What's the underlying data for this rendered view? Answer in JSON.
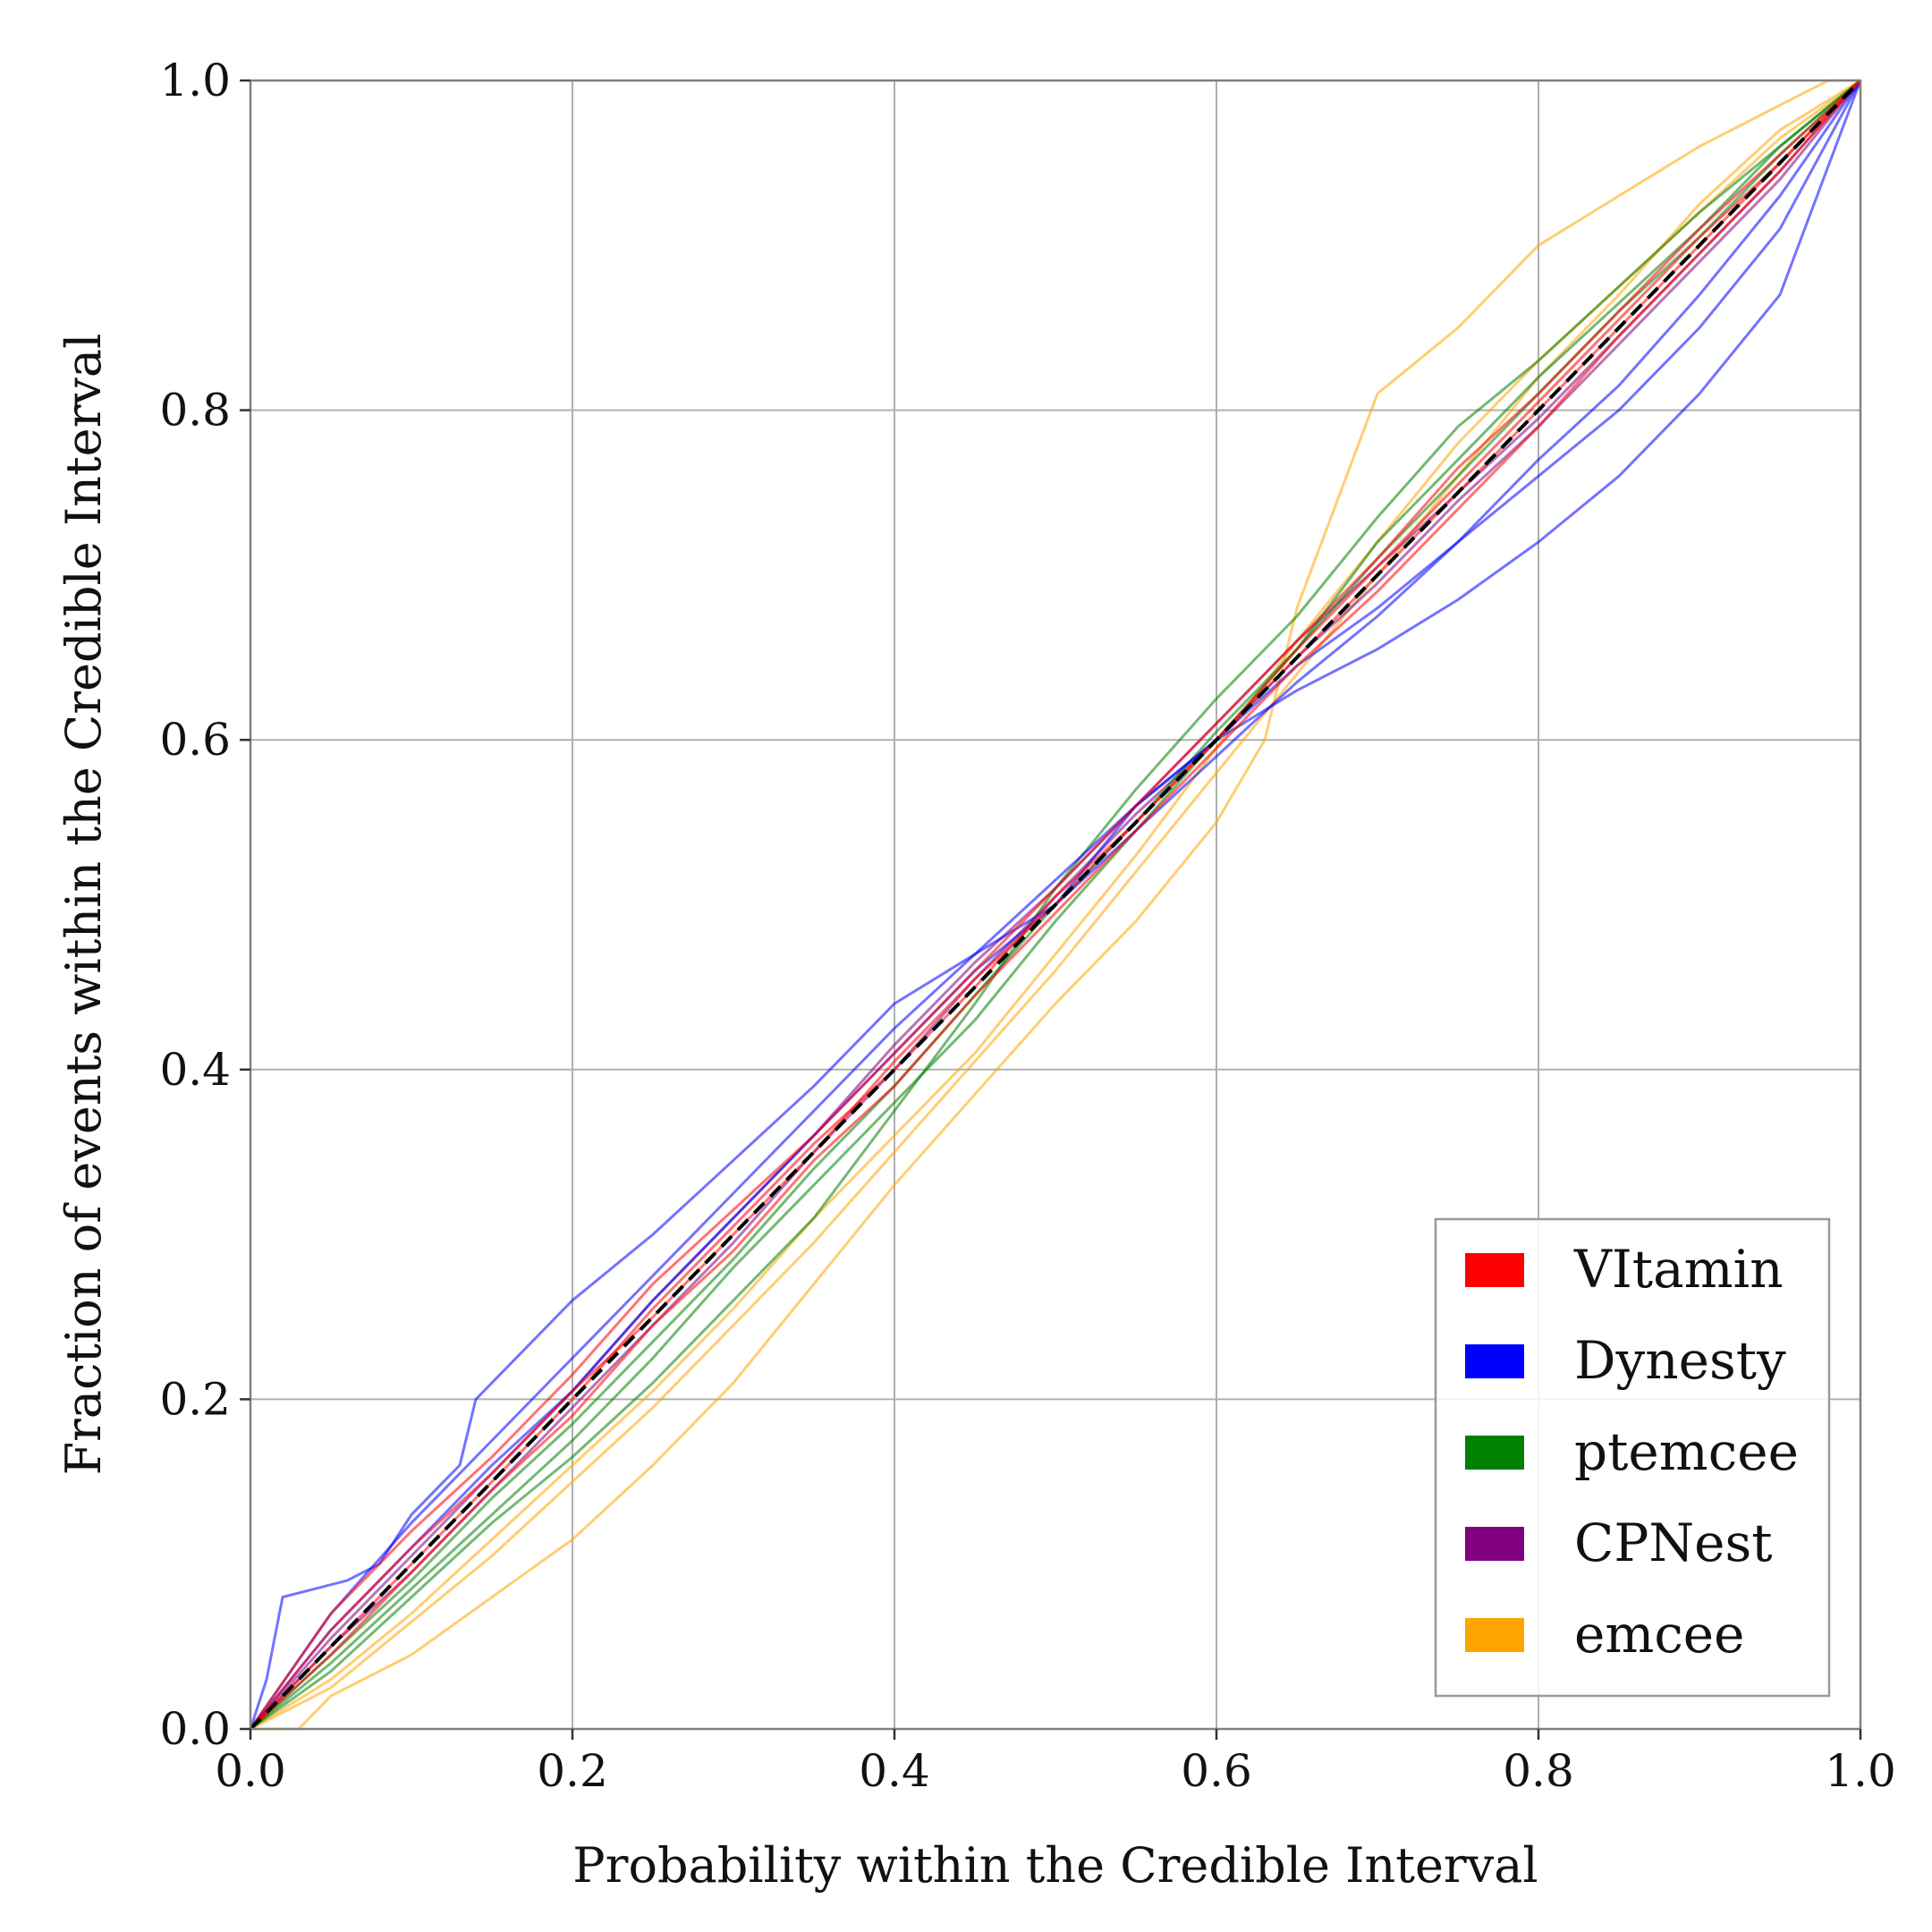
{
  "chart_data": {
    "type": "line",
    "title": "",
    "xlabel": "Probability within the Credible Interval",
    "ylabel": "Fraction of events within the Credible Interval",
    "xlim": [
      0.0,
      1.0
    ],
    "ylim": [
      0.0,
      1.0
    ],
    "grid": true,
    "x_ticks": [
      "0.0",
      "0.2",
      "0.4",
      "0.6",
      "0.8",
      "1.0"
    ],
    "y_ticks": [
      "0.0",
      "0.2",
      "0.4",
      "0.6",
      "0.8",
      "1.0"
    ],
    "legend_position": "bottom-right",
    "reference_line": {
      "name": "ideal diagonal",
      "color": "#000000",
      "style": "dashed",
      "x": [
        0.0,
        1.0
      ],
      "y": [
        0.0,
        1.0
      ]
    },
    "series": [
      {
        "name": "VItamin",
        "color": "#ff0000",
        "curves": [
          {
            "x": [
              0,
              0.05,
              0.1,
              0.15,
              0.2,
              0.25,
              0.3,
              0.35,
              0.4,
              0.45,
              0.5,
              0.55,
              0.6,
              0.65,
              0.7,
              0.75,
              0.8,
              0.85,
              0.9,
              0.95,
              1.0
            ],
            "y": [
              0,
              0.06,
              0.11,
              0.155,
              0.205,
              0.25,
              0.3,
              0.35,
              0.405,
              0.455,
              0.5,
              0.55,
              0.6,
              0.65,
              0.7,
              0.75,
              0.8,
              0.85,
              0.9,
              0.95,
              1.0
            ]
          },
          {
            "x": [
              0,
              0.05,
              0.1,
              0.15,
              0.2,
              0.25,
              0.3,
              0.35,
              0.4,
              0.45,
              0.5,
              0.55,
              0.6,
              0.65,
              0.7,
              0.75,
              0.8,
              0.85,
              0.9,
              0.95,
              1.0
            ],
            "y": [
              0,
              0.045,
              0.095,
              0.145,
              0.19,
              0.245,
              0.29,
              0.345,
              0.39,
              0.445,
              0.495,
              0.545,
              0.595,
              0.645,
              0.69,
              0.74,
              0.79,
              0.845,
              0.895,
              0.945,
              1.0
            ]
          },
          {
            "x": [
              0,
              0.05,
              0.1,
              0.15,
              0.2,
              0.25,
              0.3,
              0.35,
              0.4,
              0.45,
              0.5,
              0.55,
              0.6,
              0.65,
              0.7,
              0.75,
              0.8,
              0.85,
              0.9,
              0.95,
              1.0
            ],
            "y": [
              0,
              0.07,
              0.12,
              0.165,
              0.215,
              0.27,
              0.315,
              0.36,
              0.41,
              0.46,
              0.51,
              0.56,
              0.61,
              0.66,
              0.71,
              0.765,
              0.81,
              0.86,
              0.91,
              0.955,
              1.0
            ]
          },
          {
            "x": [
              0,
              0.05,
              0.1,
              0.15,
              0.2,
              0.25,
              0.3,
              0.35,
              0.4,
              0.45,
              0.5,
              0.55,
              0.6,
              0.65,
              0.7,
              0.75,
              0.8,
              0.85,
              0.9,
              0.95,
              1.0
            ],
            "y": [
              0,
              0.05,
              0.1,
              0.15,
              0.2,
              0.255,
              0.305,
              0.355,
              0.4,
              0.45,
              0.505,
              0.55,
              0.6,
              0.655,
              0.705,
              0.755,
              0.805,
              0.855,
              0.905,
              0.95,
              1.0
            ]
          }
        ]
      },
      {
        "name": "Dynesty",
        "color": "#0000ff",
        "curves": [
          {
            "x": [
              0,
              0.01,
              0.02,
              0.04,
              0.06,
              0.08,
              0.1,
              0.13,
              0.14,
              0.2,
              0.25,
              0.3,
              0.35,
              0.4,
              0.45,
              0.5,
              0.55,
              0.6,
              0.65,
              0.7,
              0.75,
              0.8,
              0.85,
              0.9,
              0.95,
              1.0
            ],
            "y": [
              0,
              0.03,
              0.08,
              0.085,
              0.09,
              0.1,
              0.13,
              0.16,
              0.2,
              0.26,
              0.3,
              0.345,
              0.39,
              0.44,
              0.47,
              0.5,
              0.56,
              0.6,
              0.63,
              0.655,
              0.685,
              0.72,
              0.76,
              0.81,
              0.87,
              1.0
            ]
          },
          {
            "x": [
              0,
              0.05,
              0.1,
              0.15,
              0.2,
              0.25,
              0.3,
              0.35,
              0.4,
              0.45,
              0.5,
              0.55,
              0.6,
              0.65,
              0.7,
              0.75,
              0.8,
              0.85,
              0.9,
              0.95,
              1.0
            ],
            "y": [
              0,
              0.07,
              0.125,
              0.175,
              0.225,
              0.275,
              0.325,
              0.375,
              0.425,
              0.47,
              0.515,
              0.56,
              0.6,
              0.645,
              0.68,
              0.72,
              0.76,
              0.8,
              0.85,
              0.91,
              1.0
            ]
          },
          {
            "x": [
              0,
              0.05,
              0.1,
              0.15,
              0.2,
              0.25,
              0.3,
              0.35,
              0.4,
              0.45,
              0.5,
              0.55,
              0.6,
              0.65,
              0.7,
              0.75,
              0.8,
              0.85,
              0.9,
              0.95,
              1.0
            ],
            "y": [
              0,
              0.06,
              0.11,
              0.16,
              0.205,
              0.26,
              0.31,
              0.36,
              0.41,
              0.46,
              0.5,
              0.545,
              0.59,
              0.635,
              0.675,
              0.72,
              0.77,
              0.815,
              0.87,
              0.93,
              1.0
            ]
          }
        ]
      },
      {
        "name": "ptemcee",
        "color": "#008000",
        "curves": [
          {
            "x": [
              0,
              0.05,
              0.1,
              0.15,
              0.2,
              0.25,
              0.3,
              0.35,
              0.4,
              0.45,
              0.5,
              0.55,
              0.6,
              0.65,
              0.7,
              0.75,
              0.8,
              0.85,
              0.9,
              0.95,
              1.0
            ],
            "y": [
              0,
              0.04,
              0.085,
              0.13,
              0.175,
              0.225,
              0.28,
              0.33,
              0.38,
              0.43,
              0.49,
              0.545,
              0.6,
              0.655,
              0.72,
              0.77,
              0.82,
              0.865,
              0.91,
              0.96,
              1.0
            ]
          },
          {
            "x": [
              0,
              0.05,
              0.1,
              0.15,
              0.2,
              0.25,
              0.3,
              0.35,
              0.4,
              0.45,
              0.5,
              0.55,
              0.6,
              0.65,
              0.7,
              0.75,
              0.8,
              0.85,
              0.9,
              0.95,
              1.0
            ],
            "y": [
              0,
              0.035,
              0.08,
              0.125,
              0.165,
              0.21,
              0.26,
              0.31,
              0.375,
              0.44,
              0.51,
              0.57,
              0.625,
              0.675,
              0.735,
              0.79,
              0.83,
              0.875,
              0.92,
              0.96,
              1.0
            ]
          },
          {
            "x": [
              0,
              0.05,
              0.1,
              0.15,
              0.2,
              0.25,
              0.3,
              0.35,
              0.4,
              0.45,
              0.5,
              0.55,
              0.6,
              0.65,
              0.7,
              0.75,
              0.8,
              0.85,
              0.9,
              0.95,
              1.0
            ],
            "y": [
              0,
              0.045,
              0.09,
              0.14,
              0.185,
              0.235,
              0.285,
              0.34,
              0.39,
              0.445,
              0.5,
              0.55,
              0.605,
              0.655,
              0.71,
              0.76,
              0.81,
              0.86,
              0.905,
              0.955,
              1.0
            ]
          }
        ]
      },
      {
        "name": "CPNest",
        "color": "#800080",
        "curves": [
          {
            "x": [
              0,
              0.05,
              0.1,
              0.15,
              0.2,
              0.25,
              0.3,
              0.35,
              0.4,
              0.45,
              0.5,
              0.55,
              0.6,
              0.65,
              0.7,
              0.75,
              0.8,
              0.85,
              0.9,
              0.95,
              1.0
            ],
            "y": [
              0,
              0.055,
              0.105,
              0.155,
              0.205,
              0.26,
              0.31,
              0.36,
              0.415,
              0.465,
              0.51,
              0.56,
              0.61,
              0.66,
              0.705,
              0.75,
              0.795,
              0.845,
              0.895,
              0.945,
              1.0
            ]
          },
          {
            "x": [
              0,
              0.05,
              0.1,
              0.15,
              0.2,
              0.25,
              0.3,
              0.35,
              0.4,
              0.45,
              0.5,
              0.55,
              0.6,
              0.65,
              0.7,
              0.75,
              0.8,
              0.85,
              0.9,
              0.95,
              1.0
            ],
            "y": [
              0,
              0.05,
              0.095,
              0.145,
              0.195,
              0.245,
              0.295,
              0.35,
              0.4,
              0.455,
              0.505,
              0.555,
              0.6,
              0.65,
              0.695,
              0.745,
              0.79,
              0.84,
              0.89,
              0.94,
              1.0
            ]
          }
        ]
      },
      {
        "name": "emcee",
        "color": "#ffa500",
        "curves": [
          {
            "x": [
              0,
              0.03,
              0.05,
              0.1,
              0.15,
              0.2,
              0.25,
              0.3,
              0.35,
              0.4,
              0.45,
              0.5,
              0.55,
              0.6,
              0.63,
              0.65,
              0.7,
              0.75,
              0.8,
              0.85,
              0.9,
              0.95,
              0.98,
              1.0
            ],
            "y": [
              0,
              0.0,
              0.02,
              0.045,
              0.08,
              0.115,
              0.16,
              0.21,
              0.27,
              0.33,
              0.385,
              0.44,
              0.49,
              0.55,
              0.6,
              0.68,
              0.81,
              0.85,
              0.9,
              0.93,
              0.96,
              0.985,
              1.0,
              1.0
            ]
          },
          {
            "x": [
              0,
              0.05,
              0.1,
              0.15,
              0.2,
              0.25,
              0.3,
              0.35,
              0.4,
              0.45,
              0.5,
              0.55,
              0.6,
              0.65,
              0.7,
              0.75,
              0.8,
              0.85,
              0.9,
              0.95,
              1.0
            ],
            "y": [
              0,
              0.03,
              0.07,
              0.115,
              0.16,
              0.205,
              0.255,
              0.31,
              0.36,
              0.41,
              0.47,
              0.53,
              0.595,
              0.66,
              0.72,
              0.78,
              0.83,
              0.875,
              0.92,
              0.965,
              1.0
            ]
          },
          {
            "x": [
              0,
              0.05,
              0.1,
              0.15,
              0.2,
              0.25,
              0.3,
              0.35,
              0.4,
              0.45,
              0.5,
              0.55,
              0.6,
              0.65,
              0.7,
              0.75,
              0.8,
              0.85,
              0.9,
              0.95,
              1.0
            ],
            "y": [
              0,
              0.025,
              0.065,
              0.105,
              0.15,
              0.195,
              0.245,
              0.295,
              0.35,
              0.405,
              0.46,
              0.52,
              0.58,
              0.64,
              0.7,
              0.76,
              0.82,
              0.87,
              0.925,
              0.97,
              1.0
            ]
          }
        ]
      }
    ]
  }
}
